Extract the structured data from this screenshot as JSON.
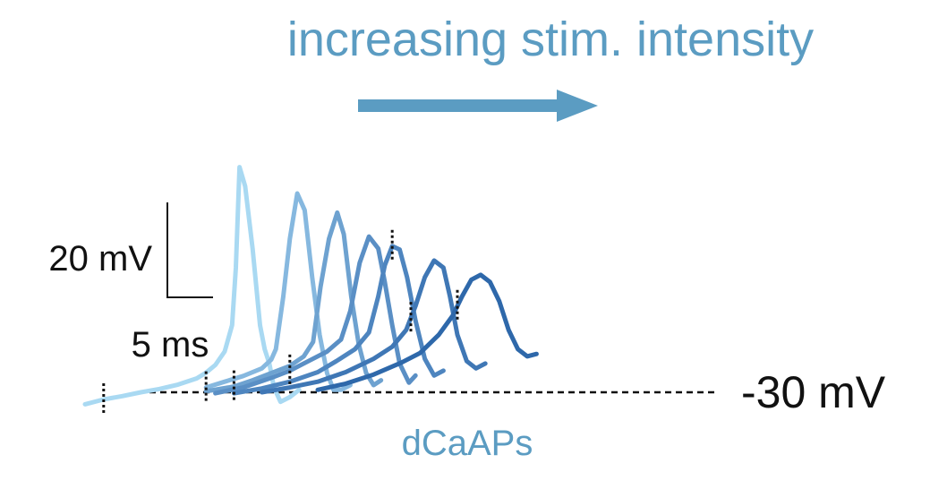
{
  "title": "increasing stim. intensity",
  "annotations": {
    "baseline_label": "-30 mV",
    "trace_label": "dCaAPs",
    "scale_bar_voltage": "20 mV",
    "scale_bar_time": "5 ms"
  },
  "colors": {
    "title": "#5b9cc2",
    "arrow": "#5b9cc2",
    "trace_label": "#5b9cc2",
    "text": "#111111",
    "baseline": "#111111",
    "stim_marker": "#111111"
  },
  "chart_data": {
    "type": "line",
    "title": "increasing stim. intensity",
    "xlabel": "",
    "ylabel": "",
    "units": {
      "x": "ms",
      "y": "mV"
    },
    "baseline_mV": -30,
    "xlim": [
      0,
      51
    ],
    "ylim": [
      -36,
      23
    ],
    "grid": false,
    "legend": "none",
    "series": [
      {
        "color": "#a9d9f2",
        "stim_time": 2.0,
        "x": [
          0,
          2,
          4,
          6,
          8,
          10,
          12,
          13,
          14,
          15,
          15.8,
          16.2,
          16.6,
          17.2,
          18.0,
          18.8,
          19.3,
          19.8,
          20.3,
          21.0,
          22.0,
          23.0
        ],
        "y": [
          -32.5,
          -31.5,
          -30.8,
          -30.0,
          -29.3,
          -28.4,
          -27.1,
          -25.9,
          -24.3,
          -21.5,
          -16.0,
          -4.0,
          17.0,
          13.0,
          0.0,
          -16.0,
          -21.0,
          -24.0,
          -29.0,
          -32.0,
          -31.0,
          -29.5
        ]
      },
      {
        "color": "#86b8df",
        "stim_time": 13.0,
        "x": [
          13,
          15,
          17,
          19,
          20,
          20.5,
          21.3,
          22.0,
          22.8,
          23.6,
          24.4,
          25.2,
          26.0,
          26.7,
          27.5,
          28.5
        ],
        "y": [
          -29.0,
          -27.8,
          -26.6,
          -25.0,
          -23.2,
          -21.0,
          -10.0,
          2.0,
          11.5,
          8.0,
          -6.0,
          -18.0,
          -26.0,
          -29.5,
          -29.5,
          -28.5
        ]
      },
      {
        "color": "#6ea2d0",
        "stim_time": 16.0,
        "x": [
          13,
          16,
          18,
          20,
          22,
          23.5,
          24.5,
          25.3,
          26.2,
          27.1,
          27.8,
          28.6,
          29.4,
          30.2,
          31.0,
          31.8
        ],
        "y": [
          -29.8,
          -28.8,
          -27.5,
          -26.0,
          -24.5,
          -22.5,
          -19.5,
          -8.0,
          2.0,
          7.5,
          3.0,
          -10.0,
          -20.0,
          -26.0,
          -28.5,
          -27.5
        ]
      },
      {
        "color": "#5a8fc5",
        "stim_time": 22.0,
        "x": [
          14,
          17,
          20,
          22,
          24,
          26,
          27.5,
          28.5,
          29.5,
          30.5,
          31.5,
          32.2,
          33.0,
          33.8,
          34.8,
          35.5
        ],
        "y": [
          -30.2,
          -29.0,
          -27.0,
          -25.5,
          -23.5,
          -21.5,
          -19.0,
          -13.0,
          -3.0,
          2.5,
          0.0,
          -7.0,
          -16.0,
          -24.0,
          -28.0,
          -26.5
        ]
      },
      {
        "color": "#4e85bf",
        "stim_time": 33.0,
        "x": [
          16,
          19,
          22,
          25,
          27,
          29,
          30.5,
          31.5,
          32.2,
          33.0,
          33.8,
          34.6,
          35.5,
          36.5,
          37.5,
          38.5
        ],
        "y": [
          -30.2,
          -29.2,
          -27.8,
          -25.8,
          -23.5,
          -21.0,
          -17.5,
          -10.0,
          -3.5,
          0.5,
          -0.2,
          -6.0,
          -15.0,
          -23.0,
          -26.5,
          -25.5
        ]
      },
      {
        "color": "#3f77b5",
        "stim_time": 35.0,
        "x": [
          19,
          22,
          25,
          28,
          31,
          33,
          34.5,
          35.5,
          36.5,
          37.5,
          38.5,
          39.2,
          40.0,
          41.0,
          42.0,
          43.0
        ],
        "y": [
          -30.0,
          -29.0,
          -27.8,
          -25.8,
          -23.0,
          -20.5,
          -17.0,
          -12.0,
          -6.0,
          -2.5,
          -4.0,
          -10.0,
          -18.0,
          -23.5,
          -25.0,
          -24.0
        ]
      },
      {
        "color": "#2e68aa",
        "stim_time": 40.0,
        "x": [
          25,
          28,
          31,
          34,
          36,
          38,
          39.5,
          40.5,
          41.5,
          42.5,
          43.5,
          44.5,
          45.5,
          46.5,
          47.5,
          48.5
        ],
        "y": [
          -29.5,
          -28.2,
          -26.3,
          -23.8,
          -21.8,
          -18.0,
          -14.0,
          -10.0,
          -6.5,
          -5.5,
          -7.0,
          -11.0,
          -17.0,
          -21.0,
          -22.5,
          -22.0
        ]
      }
    ]
  }
}
